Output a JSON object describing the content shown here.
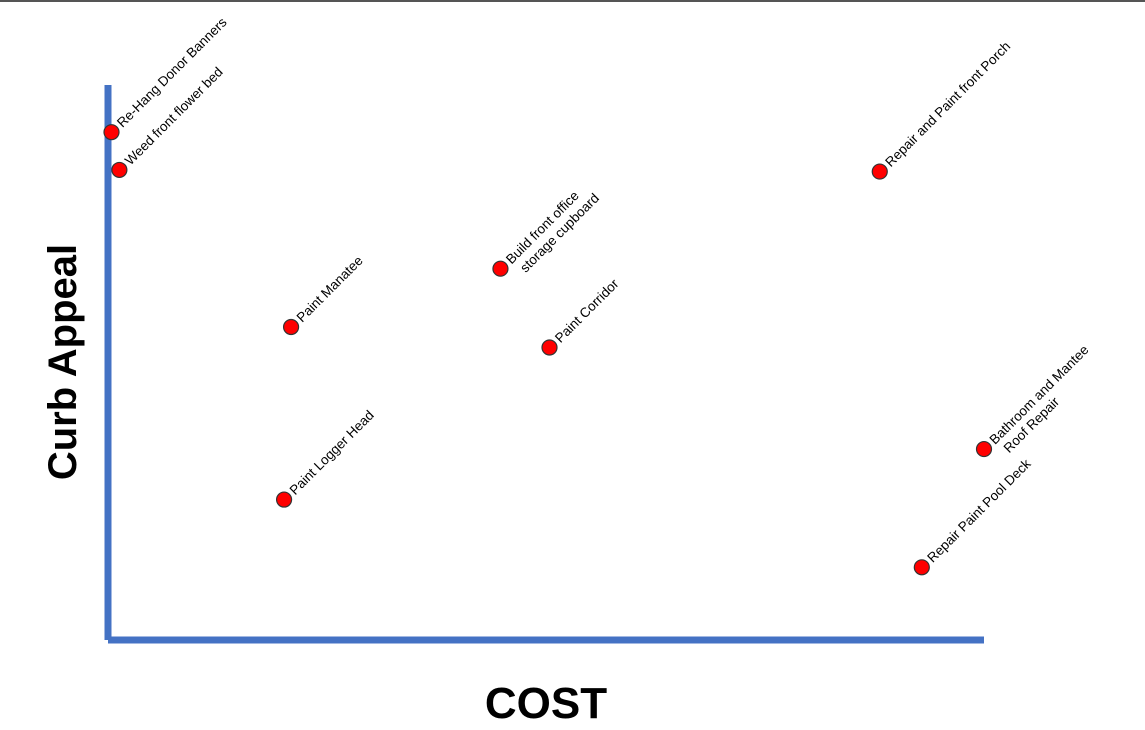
{
  "chart_data": {
    "type": "scatter",
    "title": "",
    "xlabel": "COST",
    "ylabel": "Curb Appeal",
    "xlim": [
      0,
      100
    ],
    "ylim": [
      0,
      100
    ],
    "grid": false,
    "colors": {
      "axis": "#4472c4",
      "marker": "#ff0000",
      "marker_edge": "#333333"
    },
    "points": [
      {
        "label": [
          "Re-Hang Donor Banners"
        ],
        "x": 0.4,
        "y": 91.5
      },
      {
        "label": [
          "Weed front flower bed"
        ],
        "x": 1.3,
        "y": 84.7
      },
      {
        "label": [
          "Repair and Paint front Porch"
        ],
        "x": 88.1,
        "y": 84.4
      },
      {
        "label": [
          "Build front office",
          "storage cupboard"
        ],
        "x": 44.8,
        "y": 66.9
      },
      {
        "label": [
          "Paint Manatee"
        ],
        "x": 20.9,
        "y": 56.4
      },
      {
        "label": [
          "Paint Corridor"
        ],
        "x": 50.4,
        "y": 52.7
      },
      {
        "label": [
          "Bathroom and Mantee",
          "Roof Repair"
        ],
        "x": 100.0,
        "y": 34.4
      },
      {
        "label": [
          "Paint Logger Head"
        ],
        "x": 20.1,
        "y": 25.3
      },
      {
        "label": [
          "Repair Paint Pool Deck"
        ],
        "x": 92.9,
        "y": 13.1
      }
    ]
  }
}
